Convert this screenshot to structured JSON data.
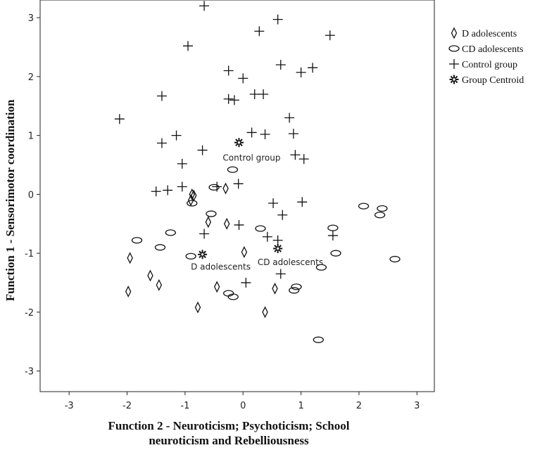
{
  "chart_data": {
    "type": "scatter",
    "xlabel_lines": [
      "Function 2 - Neuroticism; Psychoticism; School",
      "neuroticism and Rebelliousness"
    ],
    "ylabel": "Function 1 - Sensorimotor coordination",
    "xlim": [
      -3.5,
      3.3
    ],
    "ylim": [
      -3.35,
      3.3
    ],
    "xticks": [
      "-3",
      "-2",
      "-1",
      "0",
      "1",
      "2",
      "3"
    ],
    "yticks": [
      "-3",
      "-2",
      "-1",
      "0",
      "1",
      "2",
      "3"
    ],
    "grid": false,
    "legend_position": "top-right, outside plot",
    "series": [
      {
        "name": "D adolescents",
        "marker": "diamond",
        "points": [
          [
            -1.95,
            -1.08
          ],
          [
            -1.98,
            -1.65
          ],
          [
            -1.6,
            -1.38
          ],
          [
            -1.45,
            -1.54
          ],
          [
            -0.9,
            -0.1
          ],
          [
            -0.85,
            -0.02
          ],
          [
            -0.78,
            -1.92
          ],
          [
            -0.6,
            -0.47
          ],
          [
            -0.45,
            -1.57
          ],
          [
            -0.3,
            0.1
          ],
          [
            -0.28,
            -0.5
          ],
          [
            0.02,
            -0.98
          ],
          [
            0.38,
            -2.0
          ],
          [
            0.55,
            -1.6
          ],
          [
            -0.88,
            0.0
          ]
        ]
      },
      {
        "name": "CD adolescents",
        "marker": "ellipse",
        "points": [
          [
            -1.83,
            -0.78
          ],
          [
            -1.43,
            -0.9
          ],
          [
            -1.25,
            -0.65
          ],
          [
            -0.55,
            -0.33
          ],
          [
            -0.9,
            -1.05
          ],
          [
            -0.25,
            -1.68
          ],
          [
            -0.17,
            -1.74
          ],
          [
            -0.18,
            0.42
          ],
          [
            -0.5,
            0.12
          ],
          [
            -0.88,
            -0.15
          ],
          [
            0.3,
            -0.58
          ],
          [
            0.92,
            -1.57
          ],
          [
            0.88,
            -1.63
          ],
          [
            1.35,
            -1.24
          ],
          [
            1.55,
            -0.57
          ],
          [
            1.6,
            -1.0
          ],
          [
            2.08,
            -0.2
          ],
          [
            2.4,
            -0.24
          ],
          [
            2.36,
            -0.35
          ],
          [
            2.62,
            -1.1
          ],
          [
            1.3,
            -2.47
          ]
        ]
      },
      {
        "name": "Control group",
        "marker": "plus",
        "points": [
          [
            -0.67,
            3.2
          ],
          [
            -0.95,
            2.52
          ],
          [
            0.28,
            2.77
          ],
          [
            0.6,
            2.97
          ],
          [
            1.5,
            2.7
          ],
          [
            -0.25,
            2.1
          ],
          [
            0.0,
            1.97
          ],
          [
            0.65,
            2.2
          ],
          [
            1.0,
            2.07
          ],
          [
            1.2,
            2.15
          ],
          [
            -1.4,
            1.67
          ],
          [
            -0.25,
            1.62
          ],
          [
            -0.15,
            1.6
          ],
          [
            0.2,
            1.7
          ],
          [
            0.35,
            1.7
          ],
          [
            -2.13,
            1.28
          ],
          [
            0.8,
            1.3
          ],
          [
            -1.15,
            1.0
          ],
          [
            -1.4,
            0.87
          ],
          [
            -0.7,
            0.75
          ],
          [
            0.15,
            1.05
          ],
          [
            0.38,
            1.02
          ],
          [
            0.87,
            1.03
          ],
          [
            0.9,
            0.67
          ],
          [
            1.05,
            0.6
          ],
          [
            -1.05,
            0.52
          ],
          [
            -1.05,
            0.13
          ],
          [
            -1.3,
            0.07
          ],
          [
            -1.5,
            0.05
          ],
          [
            -0.45,
            0.13
          ],
          [
            -0.08,
            0.18
          ],
          [
            -0.67,
            -0.67
          ],
          [
            -0.07,
            -0.52
          ],
          [
            0.52,
            -0.15
          ],
          [
            0.68,
            -0.35
          ],
          [
            0.6,
            -0.78
          ],
          [
            0.42,
            -0.72
          ],
          [
            1.02,
            -0.13
          ],
          [
            1.55,
            -0.7
          ],
          [
            0.05,
            -1.5
          ],
          [
            0.65,
            -1.35
          ]
        ]
      },
      {
        "name": "Group Centroid",
        "marker": "star",
        "points": [
          [
            -0.07,
            0.88
          ],
          [
            -0.7,
            -1.02
          ],
          [
            0.6,
            -0.92
          ]
        ]
      }
    ],
    "annotations": [
      {
        "text": "Control group",
        "x": -0.35,
        "y": 0.57
      },
      {
        "text": "D adolescents",
        "x": -0.9,
        "y": -1.28
      },
      {
        "text": "CD adolescents",
        "x": 0.25,
        "y": -1.2
      }
    ]
  }
}
